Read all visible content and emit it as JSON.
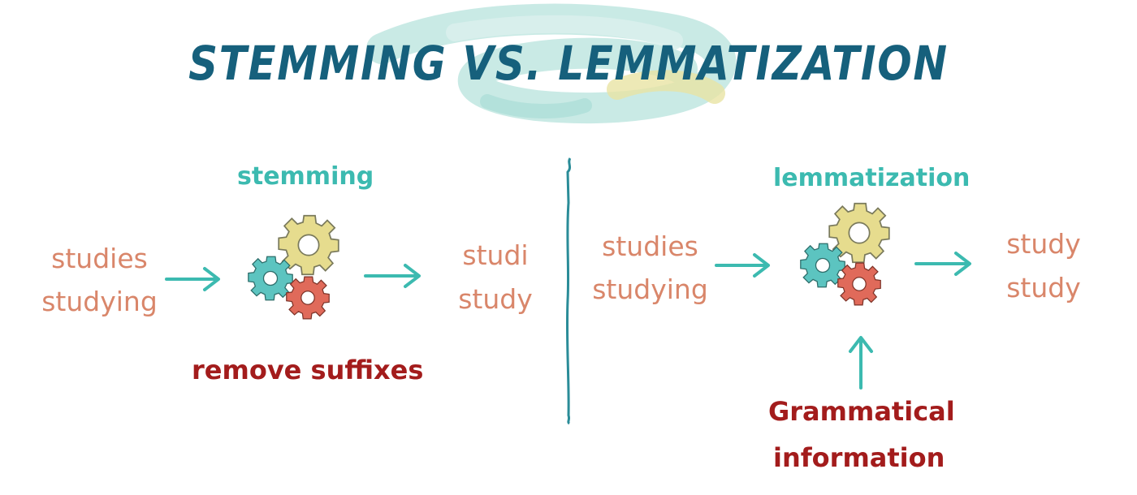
{
  "title": "STEMMING VS. LEMMATIZATION",
  "colors": {
    "title": "#16607c",
    "accent_teal": "#3cbab0",
    "word_orange": "#d9866a",
    "label_red": "#a31c1c",
    "gear_yellow": "#e6dc8e",
    "gear_teal": "#5cc4c0",
    "gear_red": "#e06a5a"
  },
  "stemming": {
    "heading": "stemming",
    "inputs": [
      "studies",
      "studying"
    ],
    "outputs": [
      "studi",
      "study"
    ],
    "note": "remove suffixes",
    "icon": "gears-icon"
  },
  "lemmatization": {
    "heading": "lemmatization",
    "inputs": [
      "studies",
      "studying"
    ],
    "outputs": [
      "study",
      "study"
    ],
    "note_line1": "Grammatical",
    "note_line2": "information",
    "icon": "gears-icon"
  }
}
